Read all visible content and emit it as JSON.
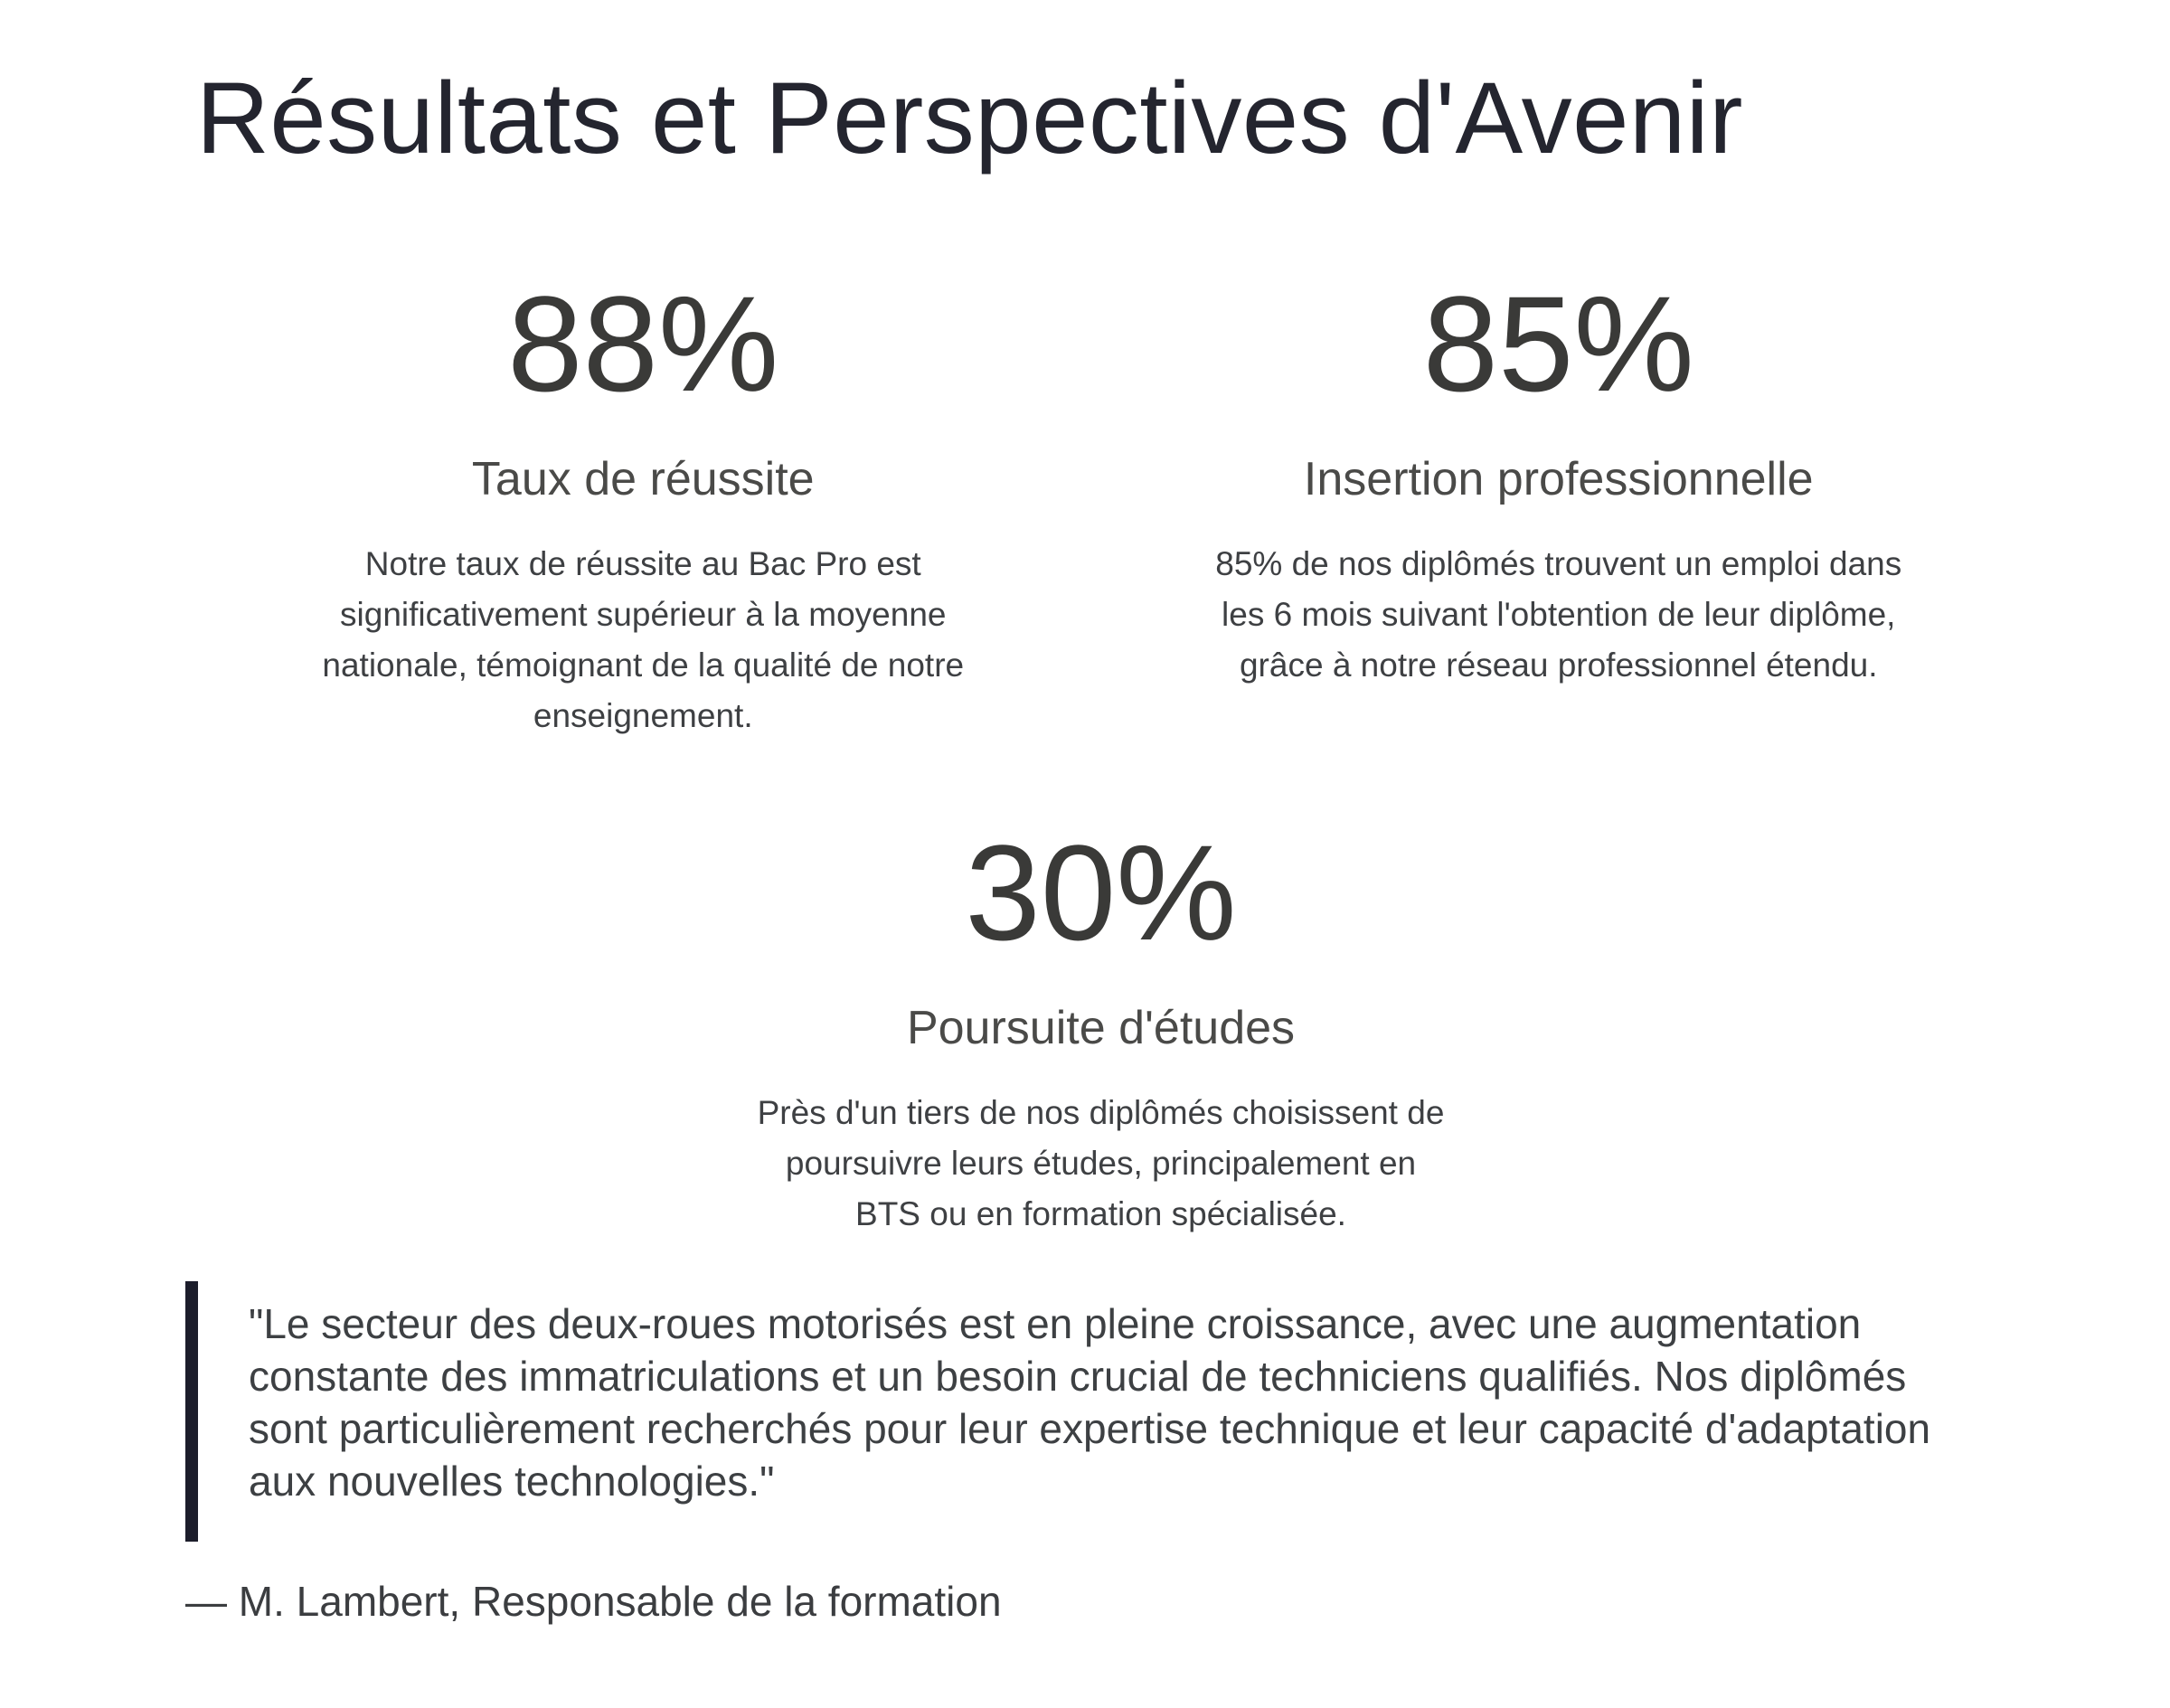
{
  "page": {
    "title": "Résultats et Perspectives d'Avenir",
    "background_color": "#ffffff",
    "colors": {
      "title": "#24252f",
      "stat_number": "#3a3a38",
      "stat_label": "#4a4a48",
      "body_text": "#3e4043",
      "quote_bar": "#1c1d2b"
    }
  },
  "stats": [
    {
      "value": "88%",
      "label": "Taux de réussite",
      "description": "Notre taux de réussite au Bac Pro est significativement supérieur à la moyenne nationale, témoignant de la qualité de notre enseignement.",
      "description_lines": [
        "Notre taux de réussite au Bac Pro est",
        "significativement supérieur à la moyenne",
        "nationale, témoignant de la qualité de notre",
        "enseignement."
      ]
    },
    {
      "value": "85%",
      "label": "Insertion professionnelle",
      "description": "85% de nos diplômés trouvent un emploi dans les 6 mois suivant l'obtention de leur diplôme, grâce à notre réseau professionnel étendu.",
      "description_lines": [
        "85% de nos diplômés trouvent un emploi dans",
        "les 6 mois suivant l'obtention de leur diplôme,",
        "grâce à notre réseau professionnel étendu."
      ]
    },
    {
      "value": "30%",
      "label": "Poursuite d'études",
      "description": "Près d'un tiers de nos diplômés choisissent de poursuivre leurs études, principalement en BTS ou en formation spécialisée.",
      "description_lines": [
        "Près d'un tiers de nos diplômés choisissent de",
        "poursuivre leurs études, principalement en",
        "BTS ou en formation spécialisée."
      ]
    }
  ],
  "quote": {
    "text": "\"Le secteur des deux-roues motorisés est en pleine croissance, avec une augmentation constante des immatriculations et un besoin crucial de techniciens qualifiés. Nos diplômés sont particulièrement recherchés pour leur expertise technique et leur capacité d'adaptation aux nouvelles technologies.\"",
    "text_lines": [
      "\"Le secteur des deux-roues motorisés est en pleine croissance, avec une augmentation",
      "constante des immatriculations et un besoin crucial de techniciens qualifiés. Nos diplômés",
      "sont particulièrement recherchés pour leur expertise technique et leur capacité d'adaptation",
      "aux nouvelles technologies.\""
    ],
    "attribution": "— M. Lambert, Responsable de la formation"
  }
}
